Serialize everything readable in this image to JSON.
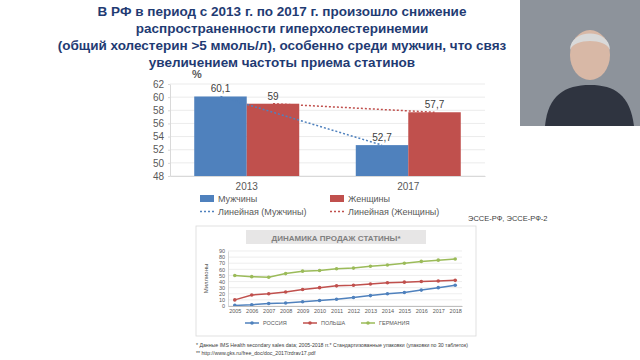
{
  "chart_data": [
    {
      "type": "bar",
      "title": "В РФ в период с 2013 г. по 2017 г. произошло снижение\nраспространенности гиперхолестеринемии\n(общий холестерин >5 ммоль/л), особенно среди мужчин, что связ\nувеличением частоты приема статинов",
      "y_label": "%",
      "categories": [
        "2013",
        "2017"
      ],
      "series": [
        {
          "name": "Мужчины",
          "type": "bar",
          "color": "#4f81bd",
          "values": [
            60.1,
            52.7
          ],
          "value_labels": [
            "60,1",
            "52,7"
          ]
        },
        {
          "name": "Женщины",
          "type": "bar",
          "color": "#c0504d",
          "values": [
            59,
            57.7
          ],
          "value_labels": [
            "59",
            "57,7"
          ]
        },
        {
          "name": "Линейная (Мужчины)",
          "type": "line",
          "line_style": "dotted",
          "color": "#4f81bd",
          "values": [
            60.1,
            52.7
          ]
        },
        {
          "name": "Линейная (Женщины)",
          "type": "line",
          "line_style": "dotted",
          "color": "#c0504d",
          "values": [
            59,
            57.7
          ]
        }
      ],
      "ylim": [
        48,
        62
      ],
      "yticks": [
        48,
        50,
        52,
        54,
        56,
        58,
        60,
        62
      ],
      "grid": true,
      "legend": "bottom",
      "data_labels": true,
      "annotations": [
        "ЭССЕ-РФ, ЭССЕ-РФ-2"
      ]
    },
    {
      "type": "line",
      "title": "ДИНАМИКА ПРОДАЖ СТАТИНЫ*",
      "y_label": "Миллионы",
      "categories": [
        "2005",
        "2006",
        "2007",
        "2008",
        "2009",
        "2010",
        "2011",
        "2012",
        "2013",
        "2014",
        "2015",
        "2016",
        "2017",
        "2018"
      ],
      "series": [
        {
          "name": "РОССИЯ",
          "color": "#4f81bd",
          "marker": "circle",
          "values": [
            1,
            2,
            4,
            5,
            7,
            9,
            11,
            14,
            17,
            20,
            22,
            26,
            30,
            34
          ]
        },
        {
          "name": "ПОЛЬША",
          "color": "#c0504d",
          "marker": "circle",
          "values": [
            10,
            18,
            20,
            23,
            27,
            30,
            33,
            34,
            36,
            38,
            39,
            40,
            41,
            42
          ]
        },
        {
          "name": "ГЕРМАНИЯ",
          "color": "#9bbb59",
          "marker": "circle",
          "values": [
            50,
            48,
            47,
            53,
            57,
            58,
            61,
            62,
            65,
            67,
            70,
            73,
            75,
            77
          ]
        }
      ],
      "ylim": [
        0,
        90
      ],
      "yticks": [
        0,
        10,
        20,
        30,
        40,
        50,
        60,
        70,
        80,
        90
      ],
      "grid": true,
      "legend": "bottom",
      "annotations": [
        "* Данные IMS Health secondary sales data; 2005-2018 гг.* Стандартизованные упаковки (упаковки по 30 таблеток)",
        "** http://www.gks.ru/free_doc/doc_2017/zdrav17.pdf"
      ]
    }
  ]
}
